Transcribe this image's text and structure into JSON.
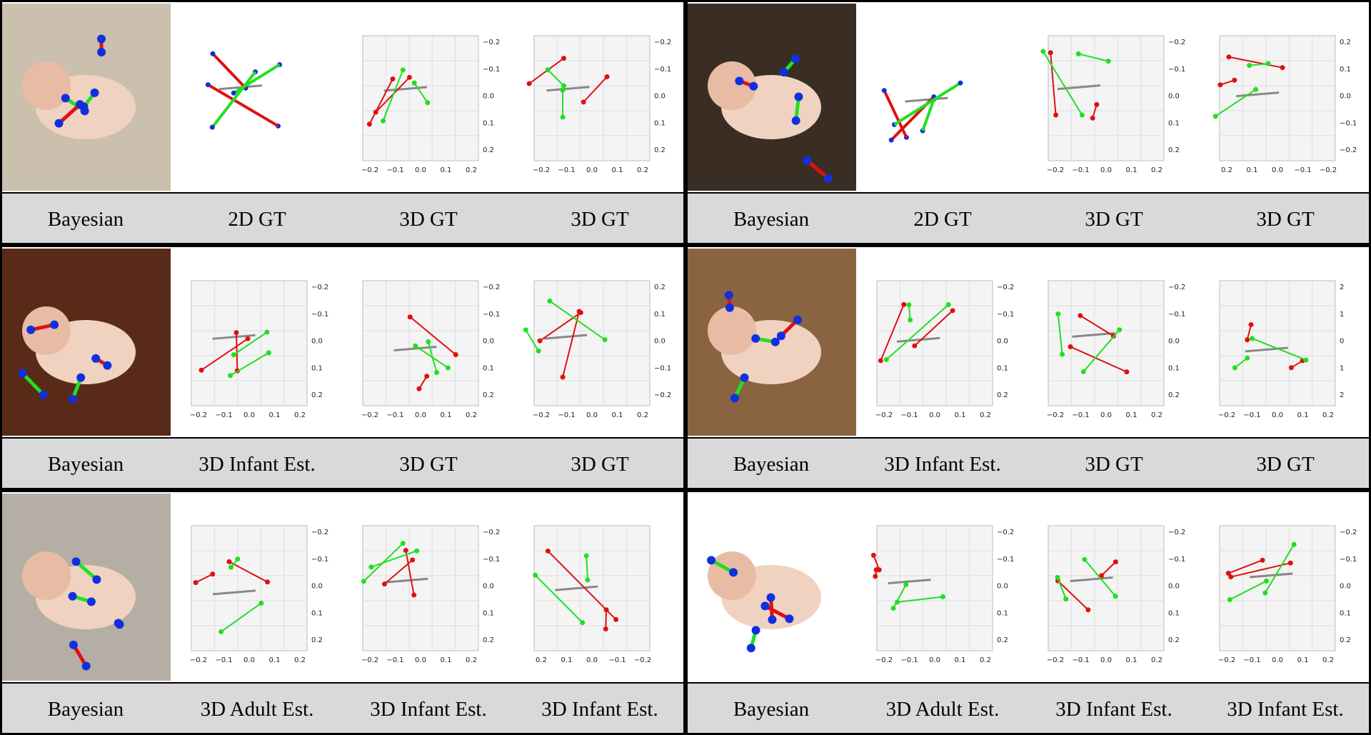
{
  "panels": [
    {
      "captions": [
        "Bayesian",
        "2D GT",
        "3D GT",
        "3D GT"
      ],
      "plots": [
        {
          "kind": "2d"
        },
        {
          "kind": "3d",
          "xticks": [
            "−0.2",
            "−0.1",
            "0.0",
            "0.1",
            "0.2"
          ],
          "yticks": [
            "−0.2",
            "−0.1",
            "0.0",
            "0.1",
            "0.2"
          ]
        },
        {
          "kind": "3d",
          "xticks": [
            "−0.2",
            "−0.1",
            "0.0",
            "0.1",
            "0.2"
          ],
          "yticks": [
            "−0.2",
            "−0.1",
            "0.0",
            "0.1",
            "0.2"
          ]
        }
      ]
    },
    {
      "captions": [
        "Bayesian",
        "2D GT",
        "3D GT",
        "3D GT"
      ],
      "plots": [
        {
          "kind": "2d"
        },
        {
          "kind": "3d",
          "xticks": [
            "−0.2",
            "−0.1",
            "0.0",
            "0.1",
            "0.2"
          ],
          "yticks": [
            "−0.2",
            "−0.1",
            "0.0",
            "0.1",
            "0.2"
          ]
        },
        {
          "kind": "3d",
          "xticks": [
            "0.2",
            "0.1",
            "0.0",
            "−0.1",
            "−0.2"
          ],
          "yticks": [
            "0.2",
            "0.1",
            "0.0",
            "−0.1",
            "−0.2"
          ]
        }
      ]
    },
    {
      "captions": [
        "Bayesian",
        "3D Infant Est.",
        "3D GT",
        "3D GT"
      ],
      "plots": [
        {
          "kind": "3d",
          "xticks": [
            "−0.2",
            "−0.1",
            "0.0",
            "0.1",
            "0.2"
          ],
          "yticks": [
            "−0.2",
            "−0.1",
            "0.0",
            "0.1",
            "0.2"
          ]
        },
        {
          "kind": "3d",
          "xticks": [
            "−0.2",
            "−0.1",
            "0.0",
            "0.1",
            "0.2"
          ],
          "yticks": [
            "−0.2",
            "−0.1",
            "0.0",
            "0.1",
            "0.2"
          ]
        },
        {
          "kind": "3d",
          "xticks": [
            "−0.2",
            "−0.1",
            "0.0",
            "0.1",
            "0.2"
          ],
          "yticks": [
            "0.2",
            "0.1",
            "0.0",
            "−0.1",
            "−0.2"
          ]
        }
      ]
    },
    {
      "captions": [
        "Bayesian",
        "3D Infant Est.",
        "3D GT",
        "3D GT"
      ],
      "plots": [
        {
          "kind": "3d",
          "xticks": [
            "−0.2",
            "−0.1",
            "0.0",
            "0.1",
            "0.2"
          ],
          "yticks": [
            "−0.2",
            "−0.1",
            "0.0",
            "0.1",
            "0.2"
          ]
        },
        {
          "kind": "3d",
          "xticks": [
            "−0.2",
            "−0.1",
            "0.0",
            "0.1",
            "0.2"
          ],
          "yticks": [
            "−0.2",
            "−0.1",
            "0.0",
            "0.1",
            "0.2"
          ]
        },
        {
          "kind": "3d",
          "xticks": [
            "−0.2",
            "−0.1",
            "0.0",
            "0.1",
            "0.2"
          ],
          "yticks": [
            "2",
            "1",
            "0",
            "1",
            "2"
          ]
        }
      ]
    },
    {
      "captions": [
        "Bayesian",
        "3D Adult Est.",
        "3D Infant Est.",
        "3D Infant Est."
      ],
      "plots": [
        {
          "kind": "3d",
          "xticks": [
            "−0.2",
            "−0.1",
            "0.0",
            "0.1",
            "0.2"
          ],
          "yticks": [
            "−0.2",
            "−0.1",
            "0.0",
            "0.1",
            "0.2"
          ]
        },
        {
          "kind": "3d",
          "xticks": [
            "−0.2",
            "−0.1",
            "0.0",
            "0.1",
            "0.2"
          ],
          "yticks": [
            "−0.2",
            "−0.1",
            "0.0",
            "0.1",
            "0.2"
          ]
        },
        {
          "kind": "3d",
          "xticks": [
            "0.2",
            "0.1",
            "0.0",
            "−0.1",
            "−0.2"
          ],
          "yticks": []
        }
      ]
    },
    {
      "captions": [
        "Bayesian",
        "3D Adult Est.",
        "3D Infant Est.",
        "3D Infant Est."
      ],
      "plots": [
        {
          "kind": "3d",
          "xticks": [
            "−0.2",
            "−0.1",
            "0.0",
            "0.1",
            "0.2"
          ],
          "yticks": [
            "−0.2",
            "−0.1",
            "0.0",
            "0.1",
            "0.2"
          ]
        },
        {
          "kind": "3d",
          "xticks": [
            "−0.2",
            "−0.1",
            "0.0",
            "0.1",
            "0.2"
          ],
          "yticks": [
            "−0.2",
            "−0.1",
            "0.0",
            "0.1",
            "0.2"
          ]
        },
        {
          "kind": "3d",
          "xticks": [
            "−0.2",
            "−0.1",
            "0.0",
            "0.1",
            "0.2"
          ],
          "yticks": [
            "−0.2",
            "−0.1",
            "0.0",
            "0.1",
            "0.2"
          ]
        }
      ]
    }
  ]
}
